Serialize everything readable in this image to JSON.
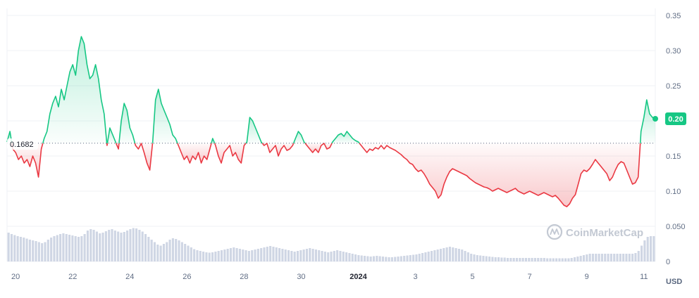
{
  "chart_data": {
    "type": "line",
    "title": "",
    "xlabel": "",
    "ylabel": "",
    "unit_label": "USD",
    "watermark": "CoinMarketCap",
    "ylim": [
      0,
      0.36
    ],
    "y_ticks": [
      {
        "value": 0,
        "label": "0"
      },
      {
        "value": 0.05,
        "label": "0.050"
      },
      {
        "value": 0.1,
        "label": "0.10"
      },
      {
        "value": 0.15,
        "label": "0.15"
      },
      {
        "value": 0.2,
        "label": "0.20"
      },
      {
        "value": 0.25,
        "label": "0.25"
      },
      {
        "value": 0.3,
        "label": "0.30"
      },
      {
        "value": 0.35,
        "label": "0.35"
      }
    ],
    "x_ticks": [
      {
        "day": 20,
        "label": "20",
        "bold": false
      },
      {
        "day": 22,
        "label": "22",
        "bold": false
      },
      {
        "day": 24,
        "label": "24",
        "bold": false
      },
      {
        "day": 26,
        "label": "26",
        "bold": false
      },
      {
        "day": 28,
        "label": "28",
        "bold": false
      },
      {
        "day": 30,
        "label": "30",
        "bold": false
      },
      {
        "day": 32,
        "label": "2024",
        "bold": true
      },
      {
        "day": 34,
        "label": "3",
        "bold": false
      },
      {
        "day": 36,
        "label": "5",
        "bold": false
      },
      {
        "day": 38,
        "label": "7",
        "bold": false
      },
      {
        "day": 40,
        "label": "9",
        "bold": false
      },
      {
        "day": 42,
        "label": "11",
        "bold": false
      }
    ],
    "x_range": [
      19.7,
      42.4
    ],
    "baseline": {
      "value": 0.1682,
      "label": "0.1682"
    },
    "current_price": {
      "value": 0.203,
      "label": "0.20"
    },
    "colors": {
      "up": "#16c784",
      "down": "#ea3943",
      "label_bg": "#16c784",
      "grid": "#eff2f5",
      "volume": "#cfd6e4"
    },
    "series": [
      {
        "x": [
          19.7,
          19.8,
          19.9,
          20.0,
          20.1,
          20.2,
          20.3,
          20.4,
          20.5,
          20.6,
          20.7,
          20.8,
          20.9,
          21.0,
          21.1,
          21.2,
          21.3,
          21.4,
          21.5,
          21.6,
          21.7,
          21.8,
          21.9,
          22.0,
          22.1,
          22.2,
          22.3,
          22.4,
          22.5,
          22.6,
          22.7,
          22.8,
          22.9,
          23.0,
          23.1,
          23.2,
          23.3,
          23.4,
          23.5,
          23.6,
          23.7,
          23.8,
          23.9,
          24.0,
          24.1,
          24.2,
          24.3,
          24.4,
          24.5,
          24.6,
          24.7,
          24.8,
          24.9,
          25.0,
          25.1,
          25.2,
          25.3,
          25.4,
          25.5,
          25.6,
          25.7,
          25.8,
          25.9,
          26.0,
          26.1,
          26.2,
          26.3,
          26.4,
          26.5,
          26.6,
          26.7,
          26.8,
          26.9,
          27.0,
          27.1,
          27.2,
          27.3,
          27.4,
          27.5,
          27.6,
          27.7,
          27.8,
          27.9,
          28.0,
          28.1,
          28.2,
          28.3,
          28.4,
          28.5,
          28.6,
          28.7,
          28.8,
          28.9,
          29.0,
          29.1,
          29.2,
          29.3,
          29.4,
          29.5,
          29.6,
          29.7,
          29.8,
          29.9,
          30.0,
          30.1,
          30.2,
          30.3,
          30.4,
          30.5,
          30.6,
          30.7,
          30.8,
          30.9,
          31.0,
          31.1,
          31.2,
          31.3,
          31.4,
          31.5,
          31.6,
          31.7,
          31.8,
          31.9,
          32.0,
          32.1,
          32.2,
          32.3,
          32.4,
          32.5,
          32.6,
          32.7,
          32.8,
          32.9,
          33.0,
          33.1,
          33.2,
          33.3,
          33.4,
          33.5,
          33.6,
          33.7,
          33.8,
          33.9,
          34.0,
          34.1,
          34.2,
          34.3,
          34.4,
          34.5,
          34.6,
          34.7,
          34.8,
          34.9,
          35.0,
          35.1,
          35.2,
          35.3,
          35.4,
          35.5,
          35.6,
          35.7,
          35.8,
          35.9,
          36.0,
          36.1,
          36.2,
          36.3,
          36.4,
          36.5,
          36.6,
          36.7,
          36.8,
          36.9,
          37.0,
          37.1,
          37.2,
          37.3,
          37.4,
          37.5,
          37.6,
          37.7,
          37.8,
          37.9,
          38.0,
          38.1,
          38.2,
          38.3,
          38.4,
          38.5,
          38.6,
          38.7,
          38.8,
          38.9,
          39.0,
          39.1,
          39.2,
          39.3,
          39.4,
          39.5,
          39.6,
          39.7,
          39.8,
          39.9,
          40.0,
          40.1,
          40.2,
          40.3,
          40.4,
          40.5,
          40.6,
          40.7,
          40.8,
          40.9,
          41.0,
          41.1,
          41.2,
          41.3,
          41.4,
          41.5,
          41.6,
          41.7,
          41.8,
          41.9,
          42.0,
          42.1,
          42.2,
          42.3,
          42.4
        ],
        "values": [
          0.17,
          0.185,
          0.16,
          0.155,
          0.145,
          0.15,
          0.14,
          0.145,
          0.135,
          0.15,
          0.14,
          0.12,
          0.16,
          0.175,
          0.185,
          0.21,
          0.225,
          0.235,
          0.22,
          0.245,
          0.23,
          0.25,
          0.27,
          0.28,
          0.265,
          0.3,
          0.32,
          0.31,
          0.28,
          0.26,
          0.265,
          0.28,
          0.26,
          0.23,
          0.21,
          0.165,
          0.19,
          0.18,
          0.17,
          0.16,
          0.2,
          0.225,
          0.215,
          0.19,
          0.18,
          0.165,
          0.16,
          0.168,
          0.155,
          0.14,
          0.13,
          0.17,
          0.23,
          0.245,
          0.225,
          0.215,
          0.205,
          0.195,
          0.18,
          0.175,
          0.165,
          0.155,
          0.145,
          0.15,
          0.14,
          0.15,
          0.145,
          0.155,
          0.14,
          0.15,
          0.145,
          0.16,
          0.175,
          0.165,
          0.15,
          0.14,
          0.155,
          0.16,
          0.165,
          0.15,
          0.155,
          0.145,
          0.14,
          0.165,
          0.17,
          0.205,
          0.2,
          0.19,
          0.18,
          0.17,
          0.165,
          0.168,
          0.155,
          0.16,
          0.165,
          0.15,
          0.16,
          0.165,
          0.158,
          0.16,
          0.165,
          0.175,
          0.185,
          0.18,
          0.17,
          0.165,
          0.16,
          0.155,
          0.16,
          0.155,
          0.165,
          0.168,
          0.16,
          0.162,
          0.17,
          0.175,
          0.18,
          0.182,
          0.178,
          0.185,
          0.18,
          0.175,
          0.172,
          0.17,
          0.165,
          0.16,
          0.155,
          0.16,
          0.158,
          0.162,
          0.16,
          0.165,
          0.16,
          0.165,
          0.162,
          0.16,
          0.158,
          0.155,
          0.152,
          0.148,
          0.145,
          0.14,
          0.138,
          0.132,
          0.128,
          0.13,
          0.125,
          0.118,
          0.11,
          0.105,
          0.1,
          0.09,
          0.095,
          0.11,
          0.12,
          0.128,
          0.132,
          0.13,
          0.128,
          0.126,
          0.124,
          0.122,
          0.118,
          0.115,
          0.112,
          0.11,
          0.108,
          0.106,
          0.105,
          0.103,
          0.1,
          0.102,
          0.104,
          0.102,
          0.1,
          0.098,
          0.1,
          0.102,
          0.104,
          0.1,
          0.098,
          0.096,
          0.098,
          0.1,
          0.098,
          0.096,
          0.094,
          0.096,
          0.098,
          0.096,
          0.094,
          0.092,
          0.094,
          0.09,
          0.085,
          0.08,
          0.078,
          0.082,
          0.09,
          0.095,
          0.11,
          0.125,
          0.13,
          0.128,
          0.132,
          0.138,
          0.145,
          0.14,
          0.135,
          0.13,
          0.125,
          0.115,
          0.12,
          0.13,
          0.138,
          0.142,
          0.14,
          0.13,
          0.12,
          0.11,
          0.112,
          0.12,
          0.185,
          0.205,
          0.23,
          0.21,
          0.205,
          0.203
        ]
      }
    ],
    "volume": [
      0.82,
      0.78,
      0.75,
      0.72,
      0.7,
      0.68,
      0.65,
      0.62,
      0.6,
      0.58,
      0.55,
      0.52,
      0.55,
      0.62,
      0.68,
      0.72,
      0.75,
      0.78,
      0.8,
      0.78,
      0.76,
      0.74,
      0.72,
      0.7,
      0.72,
      0.78,
      0.88,
      0.92,
      0.9,
      0.85,
      0.8,
      0.82,
      0.86,
      0.9,
      0.92,
      0.88,
      0.85,
      0.82,
      0.84,
      0.88,
      0.92,
      0.95,
      0.94,
      0.9,
      0.85,
      0.78,
      0.7,
      0.62,
      0.55,
      0.48,
      0.45,
      0.5,
      0.55,
      0.62,
      0.66,
      0.64,
      0.6,
      0.55,
      0.5,
      0.45,
      0.4,
      0.35,
      0.32,
      0.3,
      0.28,
      0.26,
      0.25,
      0.26,
      0.28,
      0.3,
      0.32,
      0.34,
      0.36,
      0.38,
      0.4,
      0.38,
      0.36,
      0.34,
      0.32,
      0.3,
      0.32,
      0.34,
      0.36,
      0.38,
      0.4,
      0.42,
      0.44,
      0.42,
      0.4,
      0.38,
      0.36,
      0.34,
      0.32,
      0.3,
      0.28,
      0.3,
      0.32,
      0.34,
      0.36,
      0.38,
      0.36,
      0.34,
      0.32,
      0.3,
      0.28,
      0.26,
      0.28,
      0.3,
      0.32,
      0.3,
      0.28,
      0.26,
      0.24,
      0.22,
      0.2,
      0.18,
      0.17,
      0.16,
      0.15,
      0.14,
      0.15,
      0.16,
      0.15,
      0.14,
      0.13,
      0.12,
      0.12,
      0.13,
      0.14,
      0.15,
      0.16,
      0.17,
      0.18,
      0.19,
      0.2,
      0.22,
      0.24,
      0.26,
      0.28,
      0.3,
      0.32,
      0.34,
      0.36,
      0.38,
      0.4,
      0.42,
      0.4,
      0.38,
      0.36,
      0.34,
      0.3,
      0.26,
      0.22,
      0.2,
      0.18,
      0.17,
      0.16,
      0.15,
      0.14,
      0.13,
      0.12,
      0.12,
      0.11,
      0.11,
      0.1,
      0.1,
      0.1,
      0.1,
      0.1,
      0.1,
      0.1,
      0.1,
      0.1,
      0.1,
      0.1,
      0.1,
      0.1,
      0.09,
      0.09,
      0.09,
      0.09,
      0.09,
      0.09,
      0.09,
      0.09,
      0.1,
      0.12,
      0.14,
      0.16,
      0.18,
      0.2,
      0.22,
      0.22,
      0.22,
      0.22,
      0.22,
      0.22,
      0.22,
      0.22,
      0.22,
      0.22,
      0.22,
      0.22,
      0.22,
      0.22,
      0.22,
      0.24,
      0.3,
      0.45,
      0.6,
      0.7,
      0.72,
      0.72
    ]
  }
}
